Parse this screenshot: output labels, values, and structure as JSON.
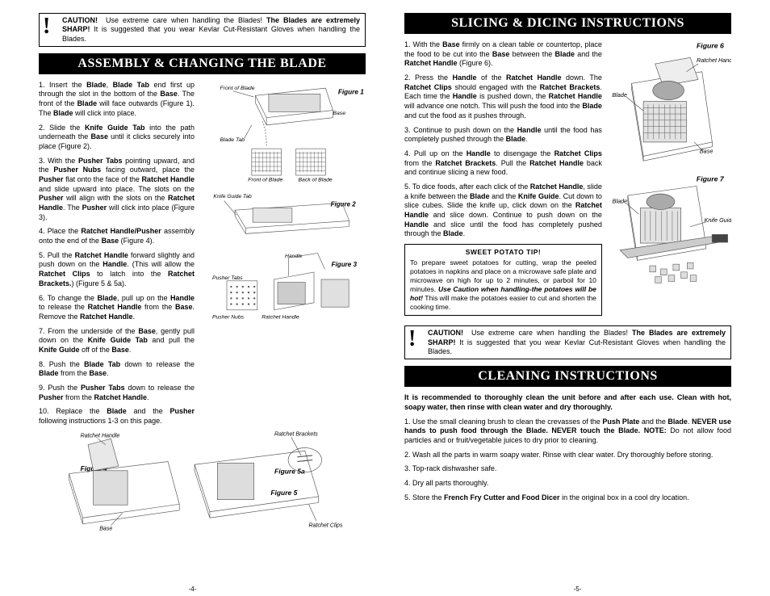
{
  "caution": {
    "bang": "!",
    "title": "CAUTION!",
    "text": "Use extreme care when handling the Blades! ",
    "bold": "The Blades are extremely SHARP!",
    "rest": " It is suggested that you wear Kevlar Cut-Resistant Gloves when handling the Blades."
  },
  "assembly": {
    "header": "ASSEMBLY & CHANGING THE BLADE",
    "steps": [
      "1. Insert the <b>Blade</b>, <b>Blade Tab</b> end first up through the slot in the bottom of the <b>Base</b>. The front of the <b>Blade</b> will face outwards (Figure 1). The <b>Blade</b> will click into place.",
      "2. Slide the <b>Knife Guide Tab</b> into the path underneath the <b>Base</b> until it clicks securely into place (Figure 2).",
      "3. With the <b>Pusher Tabs</b> pointing upward, and the <b>Pusher Nubs</b> facing outward, place the <b>Pusher</b> flat onto the face of the <b>Ratchet Handle</b> and slide upward into place. The slots on the <b>Pusher</b> will align with the slots on the <b>Ratchet Handle</b>. The <b>Pusher</b> will click into place (Figure 3).",
      "4. Place the <b>Ratchet Handle/Pusher</b> assembly onto the end of the <b>Base</b> (Figure 4).",
      "5. Pull the <b>Ratchet Handle</b> forward slightly and push down on the <b>Handle</b>. (This will allow the <b>Ratchet Clips</b> to latch into the <b>Ratchet Brackets.</b>) (Figure 5 & 5a).",
      "6. To change the <b>Blade</b>, pull up on the <b>Handle</b> to release the <b>Ratchet Handle</b> from the <b>Base</b>. Remove the <b>Ratchet Handle</b>.",
      "7. From the underside of the <b>Base</b>, gently pull down on the <b>Knife Guide Tab</b> and pull the <b>Knife Guide</b> off of the <b>Base</b>.",
      "8. Push the <b>Blade Tab</b> down to release the <b>Blade</b> from the <b>Base</b>.",
      "9. Push the <b>Pusher Tabs</b> down to release the <b>Pusher</b> from the <b>Ratchet Handle</b>.",
      "10. Replace the <b>Blade</b> and the <b>Pusher</b> following instructions 1-3 on this page."
    ],
    "figures": {
      "f1": {
        "label": "Figure 1",
        "annos": [
          "Front of Blade",
          "Base",
          "Blade Tab",
          "Front of Blade",
          "Back of Blade"
        ]
      },
      "f2": {
        "label": "Figure 2",
        "annos": [
          "Knife Guide Tab"
        ]
      },
      "f3": {
        "label": "Figure 3",
        "annos": [
          "Pusher Tabs",
          "Handle",
          "Pusher Nubs",
          "Ratchet Handle"
        ]
      },
      "f4": {
        "label": "Figure 4",
        "annos": [
          "Ratchet Handle",
          "Base"
        ]
      },
      "f5": {
        "label": "Figure 5",
        "label2": "Figure 5a",
        "annos": [
          "Ratchet Brackets",
          "Ratchet Clips"
        ]
      }
    }
  },
  "slicing": {
    "header": "SLICING & DICING INSTRUCTIONS",
    "steps": [
      "1. With the <b>Base</b> firmly on a clean table or countertop, place the food to be cut into the <b>Base</b> between the <b>Blade</b> and the <b>Ratchet Handle</b> (Figure 6).",
      "2. Press the <b>Handle</b> of the <b>Ratchet Handle</b> down. The <b>Ratchet Clips</b> should engaged with the <b>Ratchet Brackets</b>. Each time the <b>Handle</b> is pushed down, the <b>Ratchet Handle</b> will advance one notch. This will push the food into the <b>Blade</b> and cut the food as it pushes through.",
      "3. Continue to push down on the <b>Handle</b> until the food has completely pushed through the <b>Blade</b>.",
      "4. Pull up on the <b>Handle</b> to disengage the <b>Ratchet Clips</b> from the <b>Ratchet Brackets</b>. Pull the <b>Ratchet Handle</b> back and continue slicing a new food.",
      "5. To dice foods, after each click of the <b>Ratchet Handle</b>, slide a knife between the <b>Blade</b> and the <b>Knife Guide</b>. Cut down to slice cubes. Slide the knife up, click down on the <b>Ratchet Handle</b> and slice down. Continue to push down on the <b>Handle</b> and slice until the food has completely pushed through the <b>Blade</b>."
    ],
    "tip": {
      "title": "SWEET POTATO TIP!",
      "text": "To prepare sweet potatoes for cutting, wrap the peeled potatoes in napkins and place on a microwave safe plate and microwave on high for up to 2 minutes, or parboil for 10 minutes. <b><i>Use Caution when handling-the potatoes will be hot!</i></b> This will make the potatoes easier to cut and shorten the cooking time."
    },
    "figures": {
      "f6": {
        "label": "Figure 6",
        "annos": [
          "Ratchet Handle",
          "Blade",
          "Base"
        ]
      },
      "f7": {
        "label": "Figure 7",
        "annos": [
          "Blade",
          "Knife Guide"
        ]
      }
    }
  },
  "cleaning": {
    "header": "CLEANING INSTRUCTIONS",
    "intro": "It is recommended to thoroughly clean the unit before and after each use. Clean with hot, soapy water, then rinse with clean water and dry thoroughly.",
    "steps": [
      "1. Use the small cleaning brush to clean the crevasses of the <b>Push Plate</b> and the <b>Blade</b>. <b>NEVER use hands to push food through the Blade. NEVER touch the Blade. NOTE:</b> Do not allow food particles and or fruit/vegetable juices to dry prior to cleaning.",
      "2. Wash all the parts in warm soapy water. Rinse with clear water. Dry thoroughly before storing.",
      "3. Top-rack dishwasher safe.",
      "4. Dry all parts thoroughly.",
      "5. Store the <b>French Fry Cutter and Food Dicer</b> in the original box in a cool dry location."
    ]
  },
  "page_numbers": {
    "left": "-4-",
    "right": "-5-"
  },
  "colors": {
    "bg": "#ffffff",
    "fg": "#000000",
    "stroke": "#555555"
  }
}
